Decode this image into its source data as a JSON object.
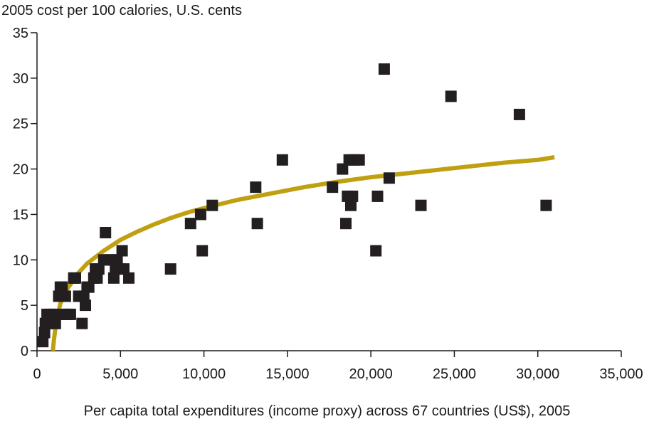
{
  "chart_data": {
    "type": "scatter",
    "title": "",
    "ylabel": "2005 cost per 100 calories, U.S. cents",
    "xlabel": "Per capita total expenditures (income proxy) across 67 countries (US$), 2005",
    "xlim": [
      0,
      35000
    ],
    "ylim": [
      0,
      35
    ],
    "x_ticks": [
      0,
      5000,
      10000,
      15000,
      20000,
      25000,
      30000,
      35000
    ],
    "x_tick_labels": [
      "0",
      "5,000",
      "10,000",
      "15,000",
      "20,000",
      "25,000",
      "30,000",
      "35,000"
    ],
    "y_ticks": [
      0,
      5,
      10,
      15,
      20,
      25,
      30,
      35
    ],
    "y_tick_labels": [
      "0",
      "5",
      "10",
      "15",
      "20",
      "25",
      "30",
      "35"
    ],
    "grid": false,
    "colors": {
      "points": "#231f20",
      "trend": "#c0a010",
      "axis": "#1a1a1a"
    },
    "series": [
      {
        "type": "scatter",
        "marker": "square",
        "x": [
          350,
          450,
          500,
          600,
          700,
          800,
          900,
          1000,
          1100,
          1300,
          1400,
          1500,
          1600,
          1700,
          1800,
          2000,
          2200,
          2300,
          2500,
          2700,
          2800,
          2900,
          3000,
          3100,
          3400,
          3500,
          3600,
          3700,
          4000,
          4100,
          4300,
          4500,
          4600,
          4700,
          4800,
          5000,
          5100,
          5200,
          5500,
          8000,
          9200,
          9800,
          9900,
          10500,
          13100,
          13200,
          14700,
          17700,
          18300,
          18500,
          18600,
          18700,
          18800,
          18900,
          19000,
          19300,
          20300,
          20400,
          20800,
          21100,
          23000,
          24800,
          28900,
          30500
        ],
        "y": [
          1,
          2,
          3,
          4,
          3,
          4,
          3,
          4,
          3,
          6,
          7,
          7,
          4,
          6,
          4,
          4,
          8,
          8,
          6,
          3,
          6,
          5,
          7,
          7,
          8,
          9,
          8,
          9,
          10,
          13,
          10,
          10,
          8,
          9,
          10,
          9,
          11,
          9,
          8,
          9,
          14,
          15,
          11,
          16,
          18,
          14,
          21,
          18,
          20,
          14,
          17,
          21,
          16,
          17,
          21,
          21,
          11,
          17,
          31,
          19,
          16,
          28,
          26,
          16
        ]
      },
      {
        "type": "line",
        "style": "logarithmic trend",
        "x": [
          950,
          1000,
          1150,
          1400,
          1700,
          2000,
          2500,
          3000,
          4000,
          5000,
          6000,
          7000,
          8000,
          9000,
          10000,
          12000,
          14000,
          16000,
          18000,
          20000,
          22000,
          24000,
          26000,
          28000,
          30000,
          31000
        ],
        "y": [
          0,
          1.0,
          3.2,
          5.2,
          6.5,
          7.3,
          8.6,
          9.6,
          11.0,
          12.2,
          13.1,
          13.9,
          14.6,
          15.2,
          15.7,
          16.6,
          17.3,
          18.0,
          18.6,
          19.1,
          19.5,
          19.9,
          20.3,
          20.7,
          21.0,
          21.3
        ]
      }
    ]
  }
}
